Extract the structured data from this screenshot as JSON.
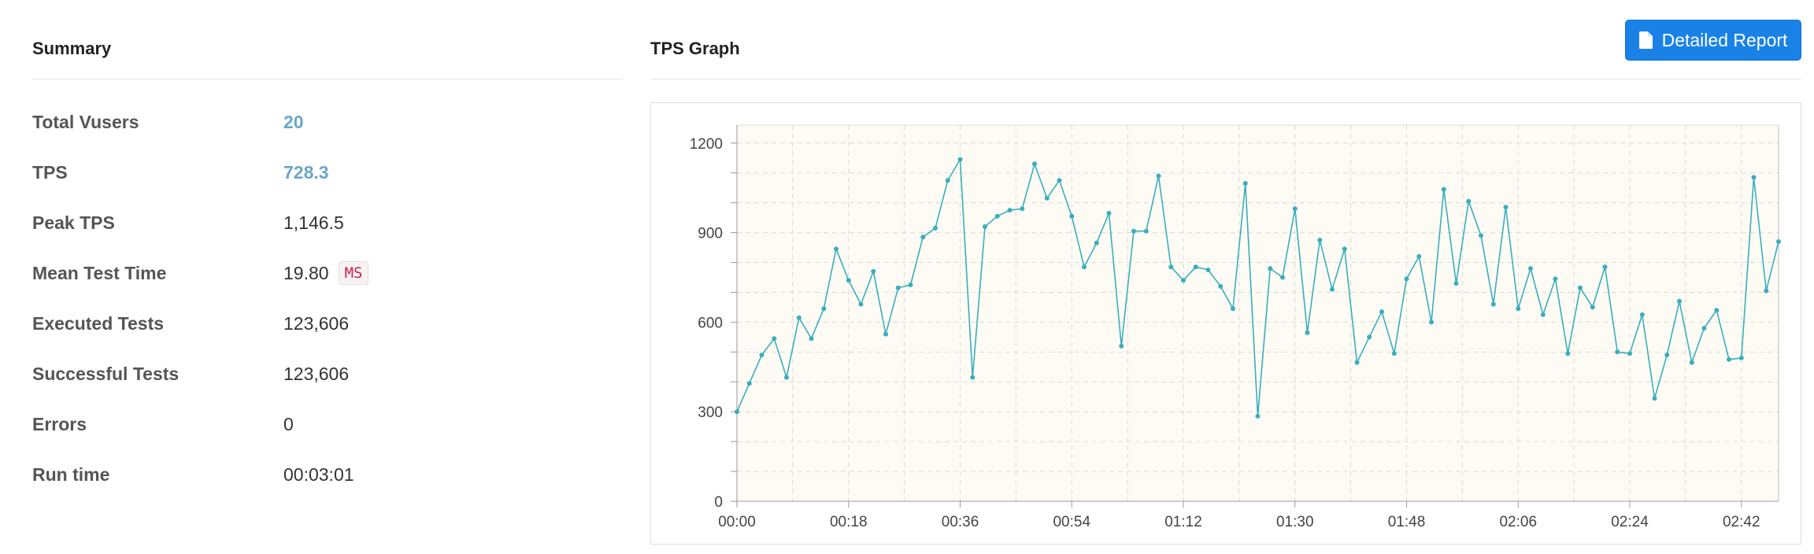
{
  "summary": {
    "title": "Summary",
    "rows": [
      {
        "label": "Total Vusers",
        "value": "20",
        "accent": true
      },
      {
        "label": "TPS",
        "value": "728.3",
        "accent": true
      },
      {
        "label": "Peak TPS",
        "value": "1,146.5"
      },
      {
        "label": "Mean Test Time",
        "value": "19.80",
        "unit": "MS"
      },
      {
        "label": "Executed Tests",
        "value": "123,606"
      },
      {
        "label": "Successful Tests",
        "value": "123,606"
      },
      {
        "label": "Errors",
        "value": "0"
      },
      {
        "label": "Run time",
        "value": "00:03:01"
      }
    ]
  },
  "tps_graph": {
    "title": "TPS Graph",
    "report_button": {
      "label": "Detailed Report",
      "icon": "file-icon"
    }
  },
  "colors": {
    "accent_value": "#6aa6c8",
    "button": "#1a82e6",
    "line": "#3aaebf",
    "plot_bg": "#fdfbf3"
  },
  "chart_data": {
    "type": "line",
    "title": "",
    "xlabel": "",
    "ylabel": "",
    "ylim": [
      0,
      1260
    ],
    "xlim": [
      0,
      168
    ],
    "y_ticks": [
      0,
      300,
      600,
      900,
      1200
    ],
    "y_minor_step": 100,
    "x_tick_labels": [
      "00:00",
      "00:18",
      "00:36",
      "00:54",
      "01:12",
      "01:30",
      "01:48",
      "02:06",
      "02:24",
      "02:42"
    ],
    "x_tick_seconds": [
      0,
      18,
      36,
      54,
      72,
      90,
      108,
      126,
      144,
      162
    ],
    "x_step_seconds": 2,
    "grid": true,
    "series": [
      {
        "values": [
          300,
          395,
          490,
          545,
          415,
          615,
          545,
          645,
          845,
          740,
          660,
          770,
          560,
          715,
          725,
          885,
          915,
          1075,
          1145,
          415,
          920,
          955,
          975,
          980,
          1130,
          1015,
          1075,
          955,
          785,
          865,
          965,
          520,
          905,
          905,
          1090,
          785,
          740,
          785,
          775,
          720,
          645,
          1065,
          285,
          780,
          750,
          980,
          565,
          875,
          710,
          845,
          465,
          550,
          635,
          495,
          745,
          820,
          600,
          1045,
          730,
          1005,
          890,
          660,
          985,
          645,
          780,
          625,
          745,
          495,
          715,
          650,
          785,
          500,
          495,
          625,
          345,
          490,
          670,
          465,
          580,
          640,
          475,
          480,
          1085,
          705,
          870
        ]
      }
    ]
  }
}
